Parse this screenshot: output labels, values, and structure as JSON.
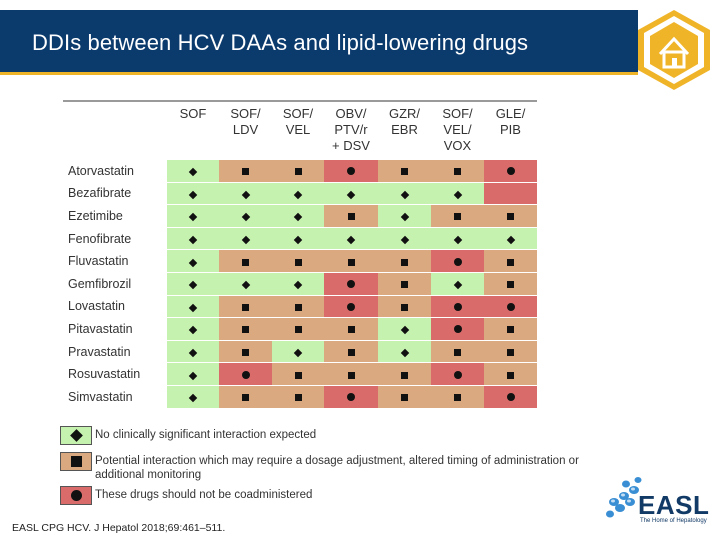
{
  "slide": {
    "title": "DDIs between HCV DAAs and lipid-lowering drugs",
    "citation": "EASL CPG HCV. J Hepatol 2018;69:461–511."
  },
  "colors": {
    "banner": "#0b3a6d",
    "accent": "#f0b429",
    "green": "#c6f2b0",
    "amber": "#dba980",
    "red": "#d96b6b",
    "logo_blue": "#3a8fd4",
    "logo_navy": "#123a66"
  },
  "table": {
    "columns": [
      {
        "line1": "SOF",
        "line2": "",
        "line3": ""
      },
      {
        "line1": "SOF/",
        "line2": "LDV",
        "line3": ""
      },
      {
        "line1": "SOF/",
        "line2": "VEL",
        "line3": ""
      },
      {
        "line1": "OBV/",
        "line2": "PTV/r",
        "line3": "+ DSV"
      },
      {
        "line1": "GZR/",
        "line2": "EBR",
        "line3": ""
      },
      {
        "line1": "SOF/",
        "line2": "VEL/",
        "line3": "VOX"
      },
      {
        "line1": "GLE/",
        "line2": "PIB",
        "line3": ""
      }
    ],
    "rows": [
      {
        "drug": "Atorvastatin",
        "cells": [
          "D",
          "S",
          "S",
          "C",
          "S",
          "S",
          "C"
        ]
      },
      {
        "drug": "Bezafibrate",
        "cells": [
          "D",
          "D",
          "D",
          "D",
          "D",
          "D",
          "-"
        ]
      },
      {
        "drug": "Ezetimibe",
        "cells": [
          "D",
          "D",
          "D",
          "S",
          "D",
          "S",
          "S"
        ]
      },
      {
        "drug": "Fenofibrate",
        "cells": [
          "D",
          "D",
          "D",
          "D",
          "D",
          "D",
          "D"
        ]
      },
      {
        "drug": "Fluvastatin",
        "cells": [
          "D",
          "S",
          "S",
          "S",
          "S",
          "C",
          "S"
        ]
      },
      {
        "drug": "Gemfibrozil",
        "cells": [
          "D",
          "D",
          "D",
          "C",
          "S",
          "D",
          "S"
        ]
      },
      {
        "drug": "Lovastatin",
        "cells": [
          "D",
          "S",
          "S",
          "C",
          "S",
          "C",
          "C"
        ]
      },
      {
        "drug": "Pitavastatin",
        "cells": [
          "D",
          "S",
          "S",
          "S",
          "D",
          "C",
          "S"
        ]
      },
      {
        "drug": "Pravastatin",
        "cells": [
          "D",
          "S",
          "D",
          "S",
          "D",
          "S",
          "S"
        ]
      },
      {
        "drug": "Rosuvastatin",
        "cells": [
          "D",
          "C",
          "S",
          "S",
          "S",
          "C",
          "S"
        ]
      },
      {
        "drug": "Simvastatin",
        "cells": [
          "D",
          "S",
          "S",
          "C",
          "S",
          "S",
          "C"
        ]
      }
    ]
  },
  "legend": [
    {
      "symbol": "diamond",
      "text": "No clinically significant interaction expected"
    },
    {
      "symbol": "square",
      "text": "Potential interaction which may require a dosage adjustment, altered timing of administration or additional monitoring"
    },
    {
      "symbol": "circle",
      "text": "These drugs should not be coadministered"
    }
  ],
  "logo": {
    "name": "EASL",
    "tagline": "The Home of Hepatology",
    "home_icon": "home-icon"
  }
}
